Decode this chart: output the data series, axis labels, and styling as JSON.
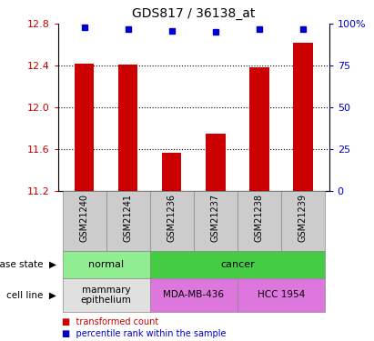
{
  "title": "GDS817 / 36138_at",
  "samples": [
    "GSM21240",
    "GSM21241",
    "GSM21236",
    "GSM21237",
    "GSM21238",
    "GSM21239"
  ],
  "bar_values": [
    12.42,
    12.41,
    11.57,
    11.75,
    12.38,
    12.62
  ],
  "percentile_values": [
    98,
    97,
    96,
    95,
    97,
    97
  ],
  "ylim_left": [
    11.2,
    12.8
  ],
  "ylim_right": [
    0,
    100
  ],
  "yticks_left": [
    11.2,
    11.6,
    12.0,
    12.4,
    12.8
  ],
  "yticks_right": [
    0,
    25,
    50,
    75,
    100
  ],
  "bar_color": "#cc0000",
  "dot_color": "#0000cc",
  "bg_color": "#ffffff",
  "left_label_color": "#cc0000",
  "right_label_color": "#0000cc",
  "disease_state_groups": [
    {
      "label": "normal",
      "cols": [
        0,
        1
      ],
      "color": "#90ee90"
    },
    {
      "label": "cancer",
      "cols": [
        2,
        3,
        4,
        5
      ],
      "color": "#44cc44"
    }
  ],
  "cell_line_groups": [
    {
      "label": "mammary\nepithelium",
      "cols": [
        0,
        1
      ],
      "color": "#e0e0e0"
    },
    {
      "label": "MDA-MB-436",
      "cols": [
        2,
        3
      ],
      "color": "#dd77dd"
    },
    {
      "label": "HCC 1954",
      "cols": [
        4,
        5
      ],
      "color": "#dd77dd"
    }
  ],
  "legend_items": [
    {
      "color": "#cc0000",
      "label": "transformed count"
    },
    {
      "color": "#0000cc",
      "label": "percentile rank within the sample"
    }
  ]
}
